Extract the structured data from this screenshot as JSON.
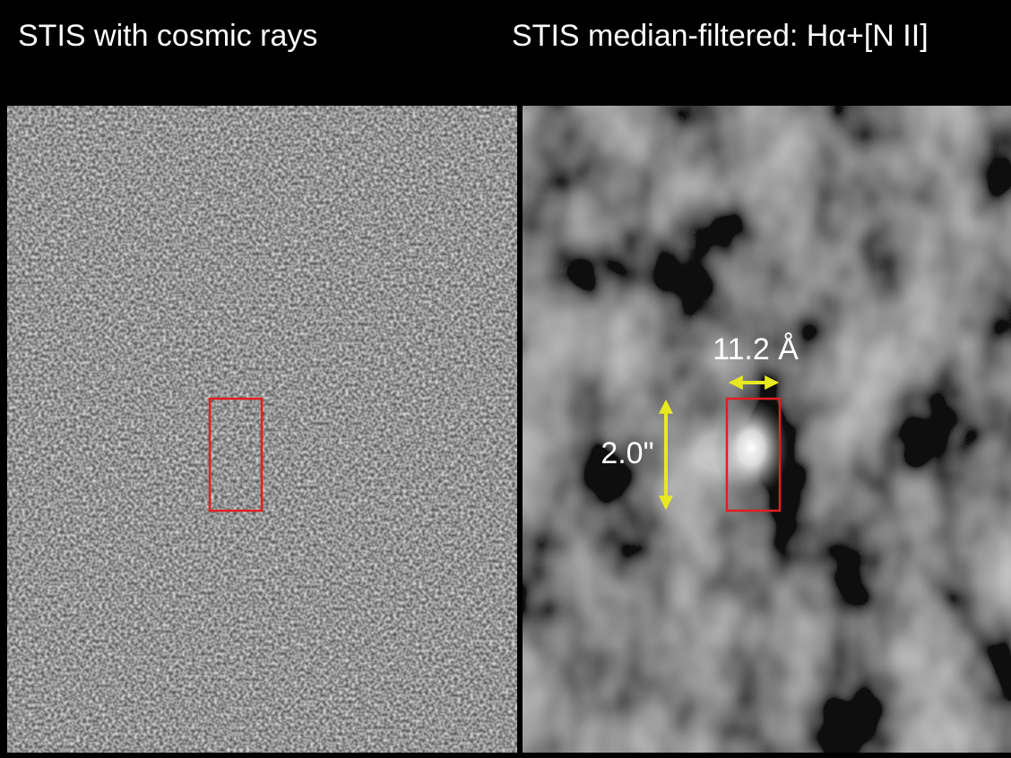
{
  "panels": [
    {
      "title": "STIS with cosmic rays"
    },
    {
      "title": "STIS median-filtered: Hα+[N II]",
      "annotations": {
        "width": "11.2 Å",
        "height": "2.0\""
      }
    }
  ]
}
